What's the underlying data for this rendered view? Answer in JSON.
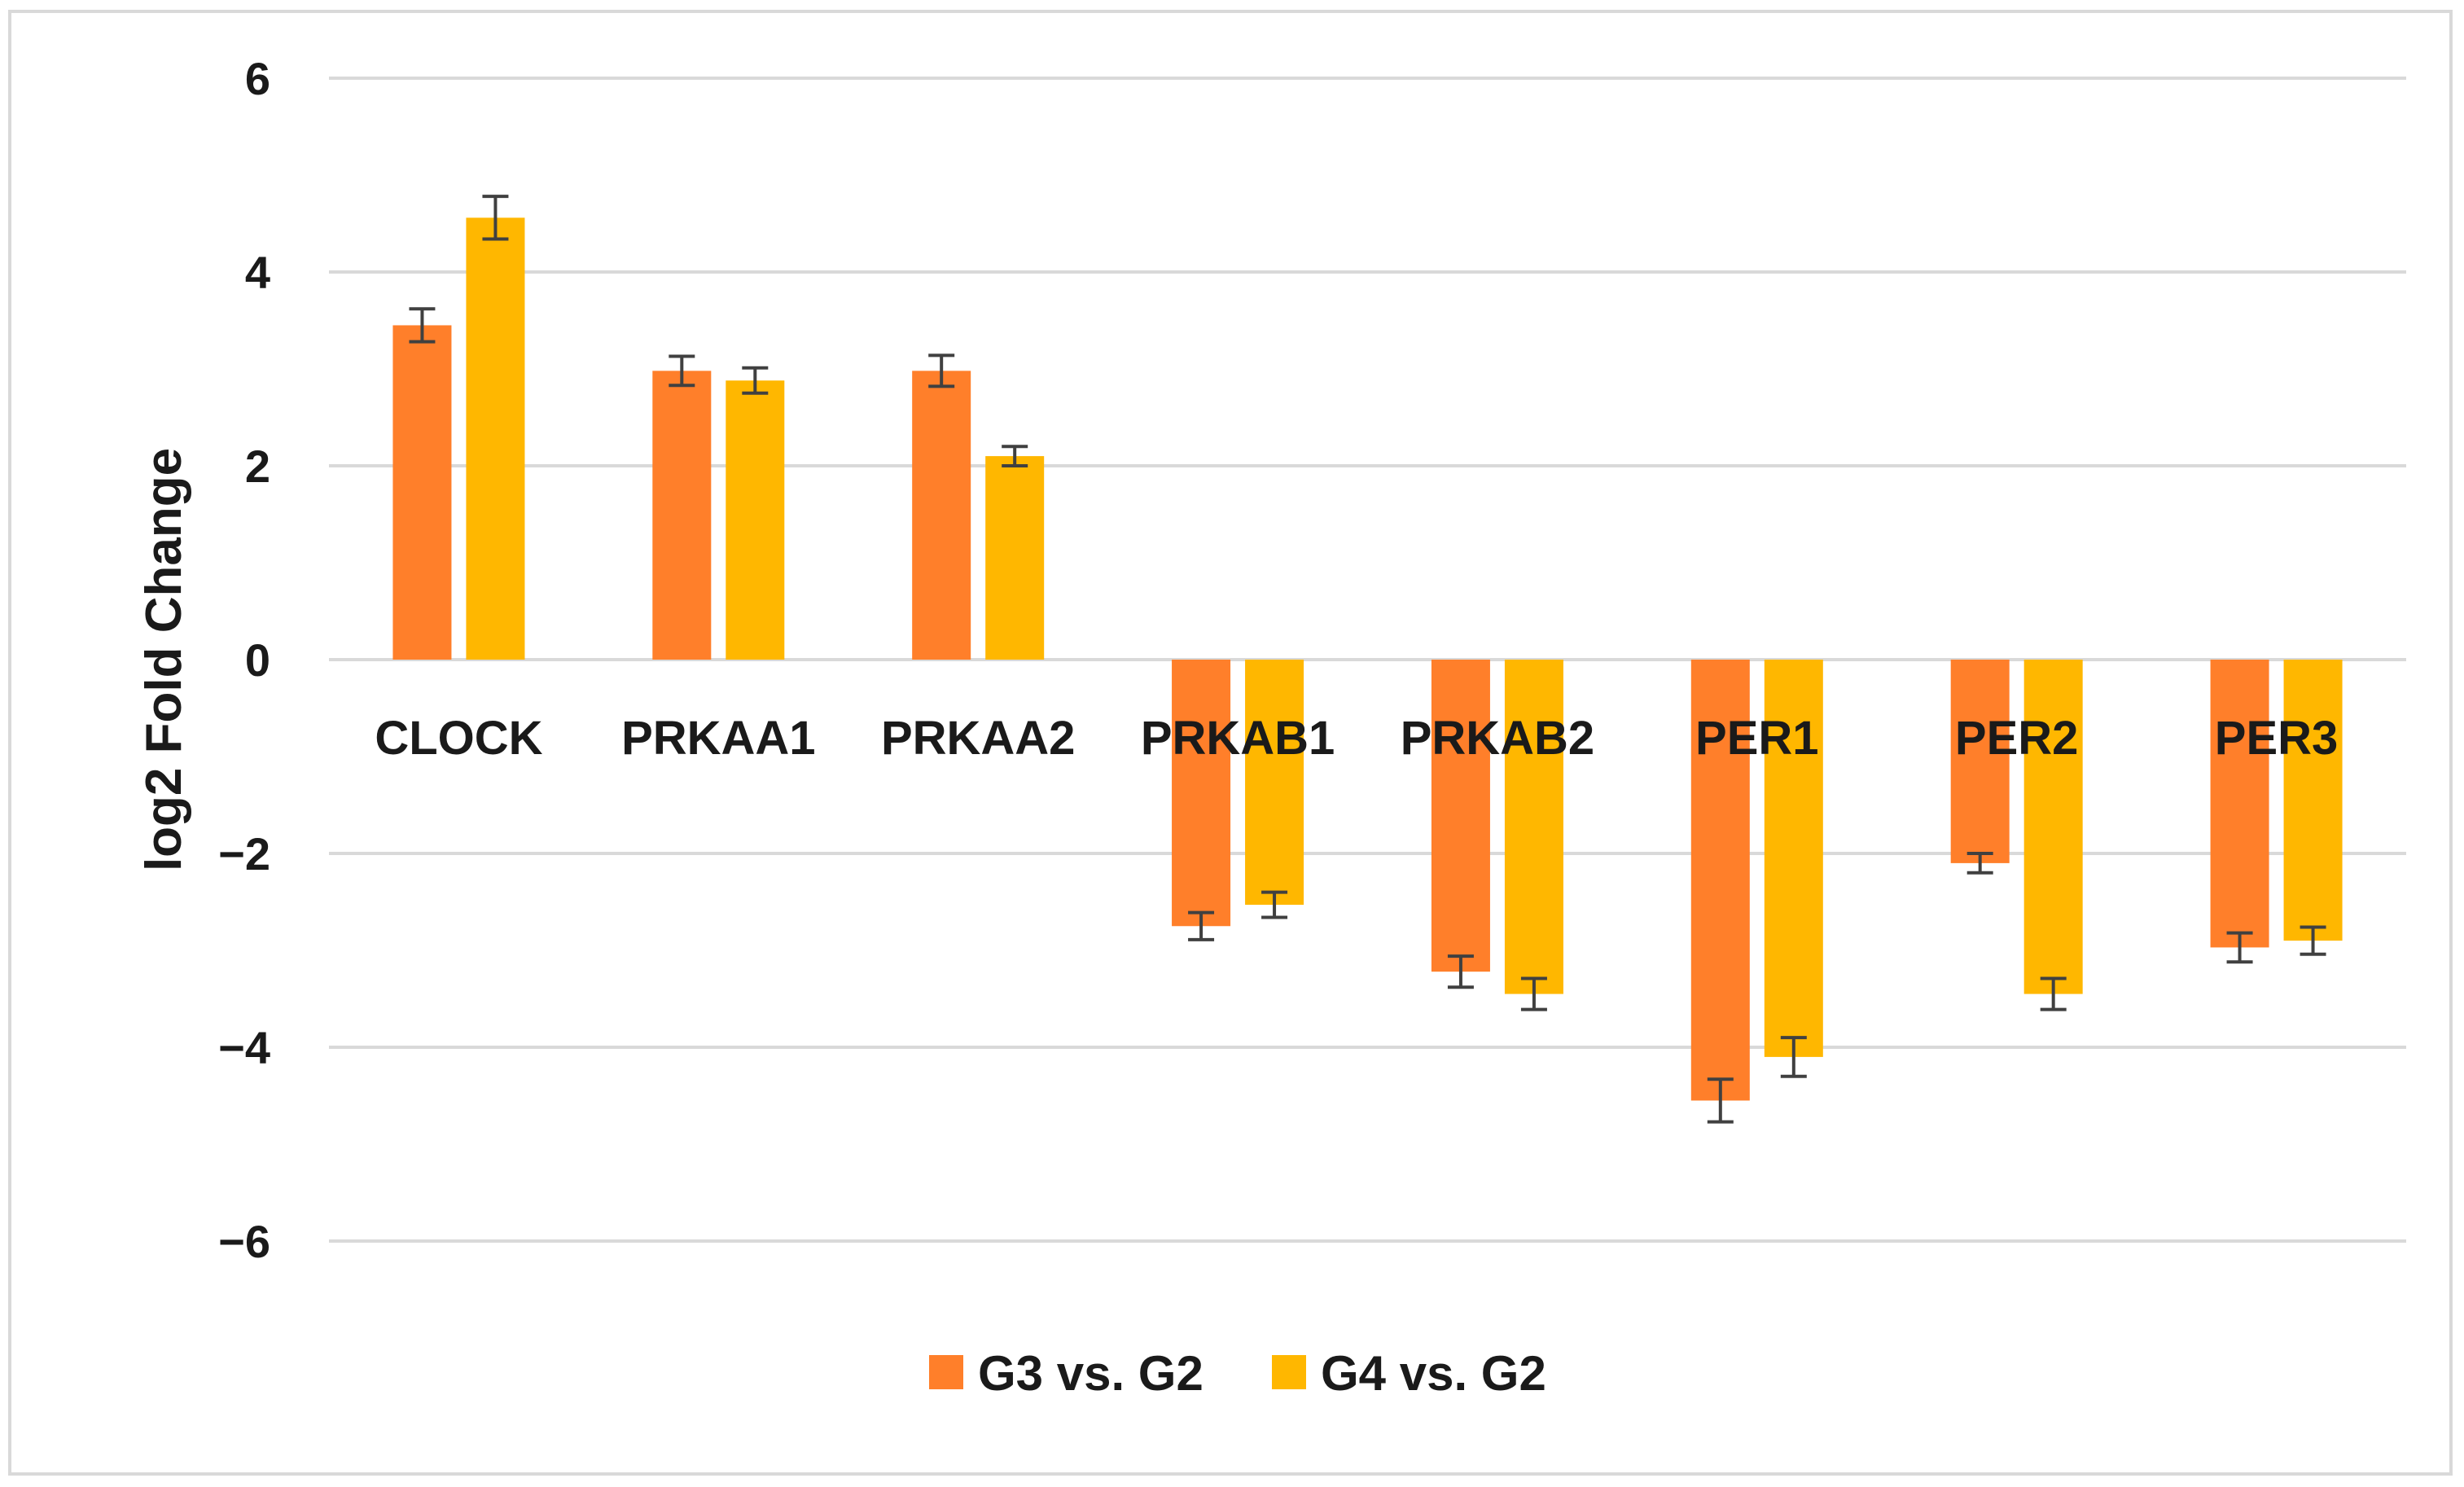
{
  "chart_data": {
    "type": "bar",
    "title": "",
    "xlabel": "",
    "ylabel": "log2 Fold Change",
    "ylim": [
      -6,
      6
    ],
    "yticks": [
      6,
      4,
      2,
      0,
      -2,
      -4,
      -6
    ],
    "ytick_labels": [
      "6",
      "4",
      "2",
      "0",
      "−2",
      "−4",
      "−6"
    ],
    "grid": true,
    "legend_position": "bottom-center",
    "categories": [
      "CLOCK",
      "PRKAA1",
      "PRKAA2",
      "PRKAB1",
      "PRKAB2",
      "PER1",
      "PER2",
      "PER3"
    ],
    "series": [
      {
        "name": "G3 vs. G2",
        "color": "#ff7f2a",
        "values": [
          3.45,
          2.98,
          2.98,
          -2.75,
          -3.22,
          -4.55,
          -2.1,
          -2.97
        ],
        "errors": [
          0.17,
          0.15,
          0.16,
          0.14,
          0.16,
          0.22,
          0.1,
          0.15
        ]
      },
      {
        "name": "G4 vs. G2",
        "color": "#ffb700",
        "values": [
          4.56,
          2.88,
          2.1,
          -2.53,
          -3.45,
          -4.1,
          -3.45,
          -2.9
        ],
        "errors": [
          0.22,
          0.13,
          0.1,
          0.13,
          0.16,
          0.2,
          0.16,
          0.14
        ]
      }
    ],
    "gridline_color": "#d9d9d9",
    "errorbar_color": "#404040"
  }
}
